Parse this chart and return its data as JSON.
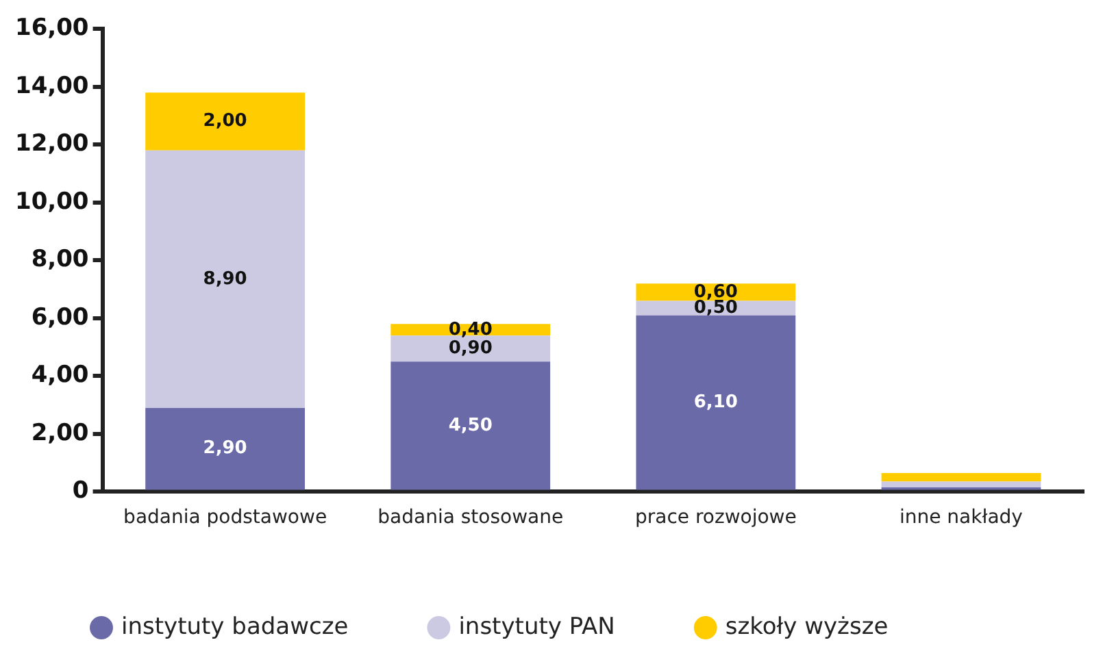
{
  "chart_data": {
    "type": "bar",
    "stacked": true,
    "categories": [
      "badania podstawowe",
      "badania stosowane",
      "prace rozwojowe",
      "inne nakłady"
    ],
    "series": [
      {
        "name": "instytuty badawcze",
        "color": "#6b6aa8",
        "values": [
          2.9,
          4.5,
          6.1,
          0.15
        ],
        "value_labels": [
          "2,90",
          "4,50",
          "6,10",
          null
        ]
      },
      {
        "name": "instytuty PAN",
        "color": "#cccae2",
        "values": [
          8.9,
          0.9,
          0.5,
          0.2
        ],
        "value_labels": [
          "8,90",
          "0,90",
          "0,50",
          null
        ]
      },
      {
        "name": "szkoły wyższe",
        "color": "#ffcc00",
        "values": [
          2.0,
          0.4,
          0.6,
          0.3
        ],
        "value_labels": [
          "2,00",
          "0,40",
          "0,60",
          null
        ]
      }
    ],
    "ylim": [
      0,
      16
    ],
    "yticks": [
      {
        "value": 0,
        "label": "0"
      },
      {
        "value": 2,
        "label": "2,00"
      },
      {
        "value": 4,
        "label": "4,00"
      },
      {
        "value": 6,
        "label": "6,00"
      },
      {
        "value": 8,
        "label": "8,00"
      },
      {
        "value": 10,
        "label": "10,00"
      },
      {
        "value": 12,
        "label": "12,00"
      },
      {
        "value": 14,
        "label": "14,00"
      },
      {
        "value": 16,
        "label": "16,00"
      }
    ],
    "grid": false,
    "legend": "bottom"
  }
}
